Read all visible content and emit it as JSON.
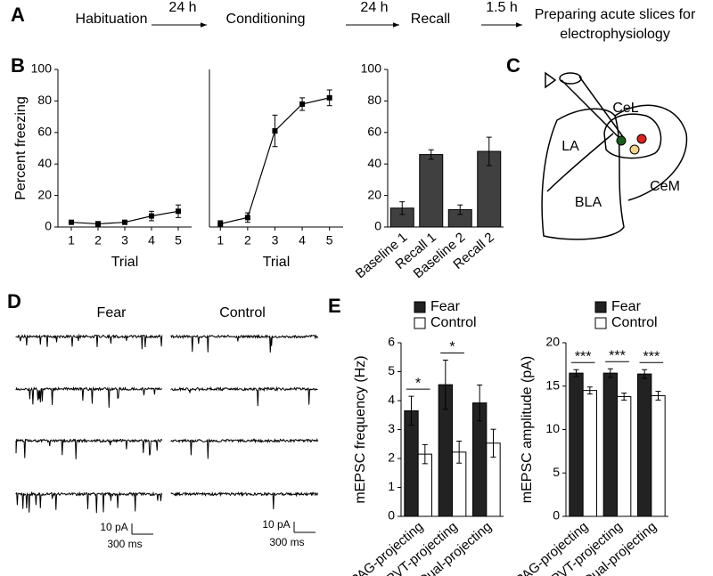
{
  "panel_labels": [
    "A",
    "B",
    "C",
    "D",
    "E"
  ],
  "timeline": {
    "steps": [
      "Habituation",
      "Conditioning",
      "Recall",
      "Preparing acute slices for electrophysiology"
    ],
    "intervals": [
      "24 h",
      "24 h",
      "1.5 h"
    ]
  },
  "chart_data": [
    {
      "type": "line",
      "ylabel": "Percent freezing",
      "xlabel": "Trial",
      "x": [
        1,
        2,
        3,
        4,
        5
      ],
      "values": [
        3,
        2,
        3,
        7,
        10
      ],
      "errors": [
        1,
        1.5,
        1,
        3,
        4
      ],
      "xlim": [
        0.5,
        5.5
      ],
      "xticks": [
        1,
        2,
        3,
        4,
        5
      ],
      "ylim": [
        0,
        100
      ],
      "yticks": [
        0,
        20,
        40,
        60,
        80,
        100
      ],
      "color": "#000000"
    },
    {
      "type": "line",
      "xlabel": "Trial",
      "x": [
        1,
        2,
        3,
        4,
        5
      ],
      "values": [
        2,
        6,
        61,
        78,
        82
      ],
      "errors": [
        2,
        3,
        10,
        4,
        5
      ],
      "xlim": [
        0.6,
        5.5
      ],
      "xticks": [
        1,
        2,
        3,
        4,
        5
      ],
      "ylim": [
        0,
        100
      ],
      "color": "#000000"
    },
    {
      "type": "bar",
      "categories": [
        "Baseline 1",
        "Recall 1",
        "Baseline 2",
        "Recall 2"
      ],
      "values": [
        12,
        46,
        11,
        48
      ],
      "errors": [
        4,
        3,
        3,
        9
      ],
      "color": "#404040",
      "ylim": [
        0,
        100
      ],
      "yticks": [
        0,
        20,
        40,
        60,
        80,
        100
      ]
    },
    {
      "type": "bar",
      "ylabel": "mEPSC frequency (Hz)",
      "categories": [
        "PAG-projecting",
        "PVT-projecting",
        "Dual-projecting"
      ],
      "series": [
        {
          "name": "Fear",
          "color": "#222222",
          "values": [
            3.65,
            4.55,
            3.92
          ],
          "errors": [
            0.5,
            0.85,
            0.62
          ]
        },
        {
          "name": "Control",
          "color": "#ffffff",
          "values": [
            2.15,
            2.22,
            2.53
          ],
          "errors": [
            0.33,
            0.38,
            0.48
          ]
        }
      ],
      "significance": [
        "*",
        "*",
        null
      ],
      "ylim": [
        0,
        6
      ],
      "yticks": [
        0,
        1,
        2,
        3,
        4,
        5,
        6
      ]
    },
    {
      "type": "bar",
      "ylabel": "mEPSC amplitude (pA)",
      "categories": [
        "PAG-projecting",
        "PVT-projecting",
        "Dual-projecting"
      ],
      "series": [
        {
          "name": "Fear",
          "color": "#222222",
          "values": [
            16.5,
            16.5,
            16.4
          ],
          "errors": [
            0.4,
            0.5,
            0.5
          ]
        },
        {
          "name": "Control",
          "color": "#ffffff",
          "values": [
            14.5,
            13.8,
            13.9
          ],
          "errors": [
            0.4,
            0.4,
            0.5
          ]
        }
      ],
      "significance": [
        "***",
        "***",
        "***"
      ],
      "ylim": [
        0,
        20
      ],
      "yticks": [
        0,
        5,
        10,
        15,
        20
      ]
    }
  ],
  "diagram": {
    "regions": [
      "LA",
      "BLA",
      "CeL",
      "CeM"
    ]
  },
  "traces": {
    "conditions": [
      "Fear",
      "Control"
    ],
    "scale_bars": [
      [
        "10 pA",
        "300 ms"
      ],
      [
        "10 pA",
        "300 ms"
      ]
    ]
  }
}
